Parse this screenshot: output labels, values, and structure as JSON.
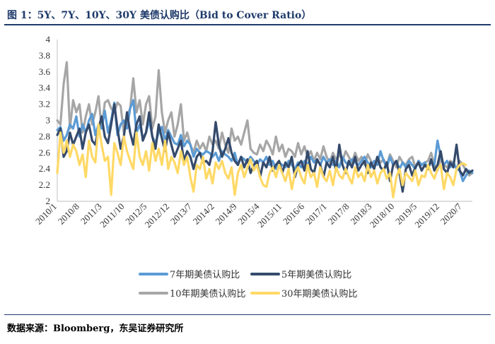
{
  "title": "图 1：5Y、7Y、10Y、30Y 美债认购比（Bid to Cover Ratio）",
  "source": "数据来源：Bloomberg，东吴证券研究所",
  "chart_data": {
    "type": "line",
    "title": "图 1：5Y、7Y、10Y、30Y 美债认购比（Bid to Cover Ratio）",
    "xlabel": "",
    "ylabel": "",
    "ylim": [
      2,
      4
    ],
    "yticks": [
      "2",
      "2.2",
      "2.4",
      "2.6",
      "2.8",
      "3",
      "3.2",
      "3.4",
      "3.6",
      "3.8",
      "4"
    ],
    "xticks": [
      "2010/1",
      "2010/8",
      "2011/3",
      "2011/10",
      "2012/5",
      "2012/12",
      "2013/7",
      "2014/2",
      "2014/9",
      "2015/4",
      "2015/11",
      "2016/6",
      "2017/1",
      "2017/8",
      "2018/3",
      "2018/10",
      "2019/5",
      "2019/12",
      "2020/7"
    ],
    "x_range": [
      0,
      131
    ],
    "legend_position": "bottom",
    "series": [
      {
        "name": "7年期美债认购比",
        "color": "#5b9bd5",
        "values": [
          2.88,
          2.92,
          2.75,
          2.82,
          2.95,
          2.9,
          3.05,
          2.8,
          2.95,
          2.85,
          3.0,
          3.08,
          2.82,
          2.95,
          2.9,
          3.12,
          2.85,
          3.0,
          3.22,
          2.82,
          2.95,
          3.0,
          2.9,
          3.15,
          3.25,
          2.85,
          2.95,
          2.78,
          2.85,
          3.0,
          2.8,
          2.72,
          2.85,
          2.92,
          2.75,
          2.88,
          2.8,
          2.72,
          2.7,
          2.82,
          2.68,
          2.75,
          2.7,
          2.55,
          2.65,
          2.6,
          2.58,
          2.62,
          2.6,
          2.55,
          2.6,
          2.5,
          2.62,
          2.58,
          2.55,
          2.5,
          2.6,
          2.45,
          2.55,
          2.52,
          2.48,
          2.55,
          2.5,
          2.45,
          2.52,
          2.48,
          2.55,
          2.45,
          2.5,
          2.4,
          2.48,
          2.45,
          2.42,
          2.5,
          2.45,
          2.4,
          2.48,
          2.42,
          2.5,
          2.45,
          2.55,
          2.48,
          2.52,
          2.45,
          2.55,
          2.48,
          2.52,
          2.45,
          2.5,
          2.42,
          2.55,
          2.48,
          2.45,
          2.52,
          2.48,
          2.45,
          2.5,
          2.55,
          2.48,
          2.42,
          2.5,
          2.45,
          2.62,
          2.5,
          2.42,
          2.55,
          2.45,
          2.5,
          2.4,
          2.48,
          2.42,
          2.5,
          2.45,
          2.4,
          2.5,
          2.45,
          2.48,
          2.4,
          2.5,
          2.45,
          2.75,
          2.55,
          2.45,
          2.5,
          2.42,
          2.48,
          2.4,
          2.38,
          2.25,
          2.32,
          2.38,
          2.35
        ]
      },
      {
        "name": "5年期美债认购比",
        "color": "#344a6b",
        "values": [
          2.82,
          2.9,
          2.55,
          2.62,
          2.85,
          2.7,
          2.8,
          2.9,
          2.65,
          2.85,
          2.95,
          2.75,
          2.7,
          2.9,
          3.05,
          2.8,
          2.72,
          2.95,
          3.2,
          2.9,
          2.65,
          2.8,
          3.1,
          2.85,
          2.7,
          2.95,
          3.05,
          2.75,
          2.85,
          3.1,
          2.8,
          2.65,
          2.95,
          2.78,
          2.62,
          2.85,
          2.7,
          2.55,
          2.65,
          2.75,
          2.5,
          2.62,
          2.55,
          2.4,
          2.55,
          2.6,
          2.48,
          2.5,
          2.45,
          2.62,
          2.98,
          2.7,
          2.55,
          2.65,
          2.78,
          2.6,
          2.5,
          2.45,
          2.55,
          2.42,
          2.52,
          2.35,
          2.45,
          2.5,
          2.3,
          2.48,
          2.42,
          2.55,
          2.38,
          2.45,
          2.5,
          2.35,
          2.48,
          2.42,
          2.55,
          2.3,
          2.45,
          2.5,
          2.38,
          2.62,
          2.4,
          2.35,
          2.52,
          2.45,
          2.3,
          2.48,
          2.42,
          2.55,
          2.38,
          2.7,
          2.45,
          2.35,
          2.5,
          2.42,
          2.55,
          2.38,
          2.45,
          2.5,
          2.35,
          2.48,
          2.4,
          2.55,
          2.42,
          2.38,
          2.48,
          2.25,
          2.45,
          2.5,
          2.35,
          2.12,
          2.4,
          2.45,
          2.32,
          2.42,
          2.48,
          2.38,
          2.45,
          2.4,
          2.52,
          2.38,
          2.45,
          2.62,
          2.4,
          2.35,
          2.48,
          2.42,
          2.7,
          2.38,
          2.32,
          2.4,
          2.35,
          2.38
        ]
      },
      {
        "name": "10年期美债认购比",
        "color": "#a6a6a6",
        "values": [
          3.0,
          2.95,
          3.45,
          3.72,
          2.9,
          3.25,
          3.1,
          3.2,
          2.85,
          3.05,
          3.2,
          2.95,
          3.1,
          3.3,
          2.9,
          3.22,
          3.25,
          3.15,
          3.1,
          3.22,
          3.18,
          2.85,
          3.05,
          3.15,
          3.52,
          3.1,
          3.25,
          2.95,
          3.2,
          3.3,
          2.9,
          3.05,
          3.62,
          3.1,
          2.85,
          3.0,
          3.1,
          2.8,
          2.95,
          3.2,
          2.75,
          2.85,
          2.7,
          2.6,
          2.75,
          2.65,
          2.72,
          2.62,
          2.8,
          2.7,
          2.75,
          2.65,
          2.85,
          2.7,
          2.6,
          2.9,
          2.75,
          2.8,
          2.7,
          2.85,
          3.0,
          2.65,
          2.6,
          2.58,
          2.7,
          2.62,
          2.75,
          2.68,
          2.58,
          2.8,
          2.62,
          2.7,
          2.55,
          2.65,
          2.62,
          2.55,
          2.72,
          2.58,
          2.68,
          2.55,
          2.62,
          2.5,
          2.6,
          2.52,
          2.68,
          2.55,
          2.48,
          2.6,
          2.52,
          2.58,
          2.5,
          2.62,
          2.55,
          2.48,
          2.6,
          2.5,
          2.55,
          2.45,
          2.58,
          2.5,
          2.42,
          2.55,
          2.48,
          2.52,
          2.45,
          2.58,
          2.5,
          2.42,
          2.55,
          2.48,
          2.45,
          2.52,
          2.55,
          2.42,
          2.5,
          2.45,
          2.48,
          2.5,
          2.6,
          2.45,
          2.38,
          2.52,
          2.45,
          2.42,
          2.5,
          2.48,
          2.4,
          2.5,
          2.45,
          2.38,
          2.32,
          2.35
        ]
      },
      {
        "name": "30年期美债认购比",
        "color": "#ffd966",
        "values": [
          2.35,
          2.85,
          2.6,
          2.75,
          2.55,
          2.7,
          2.62,
          2.45,
          2.58,
          2.3,
          2.75,
          2.55,
          2.48,
          2.95,
          2.7,
          2.5,
          2.55,
          2.08,
          2.72,
          2.6,
          2.45,
          2.8,
          2.62,
          2.5,
          2.4,
          2.85,
          2.55,
          2.45,
          2.62,
          2.38,
          2.72,
          2.5,
          2.65,
          2.45,
          2.75,
          2.4,
          2.55,
          2.48,
          2.35,
          2.62,
          2.45,
          2.55,
          2.3,
          2.12,
          2.45,
          2.4,
          2.55,
          2.28,
          2.4,
          2.22,
          2.48,
          2.4,
          2.5,
          2.35,
          2.28,
          2.42,
          2.08,
          2.35,
          2.45,
          2.3,
          2.42,
          2.52,
          2.38,
          2.45,
          2.3,
          2.2,
          2.18,
          2.35,
          2.42,
          2.3,
          2.45,
          2.35,
          2.25,
          2.4,
          2.15,
          2.35,
          2.42,
          2.3,
          2.22,
          2.45,
          2.3,
          2.35,
          2.18,
          2.42,
          2.3,
          2.25,
          2.38,
          2.2,
          2.42,
          2.32,
          2.28,
          2.4,
          2.3,
          2.22,
          2.42,
          2.3,
          2.35,
          2.25,
          2.45,
          2.3,
          2.38,
          2.22,
          2.35,
          2.4,
          2.28,
          2.35,
          2.05,
          2.3,
          2.4,
          2.2,
          2.35,
          2.3,
          2.25,
          2.38,
          2.2,
          2.32,
          2.3,
          2.45,
          2.35,
          2.28,
          2.4,
          2.45,
          2.15,
          2.35,
          2.3,
          2.2,
          2.4,
          2.45,
          2.47,
          2.45
        ]
      }
    ]
  }
}
